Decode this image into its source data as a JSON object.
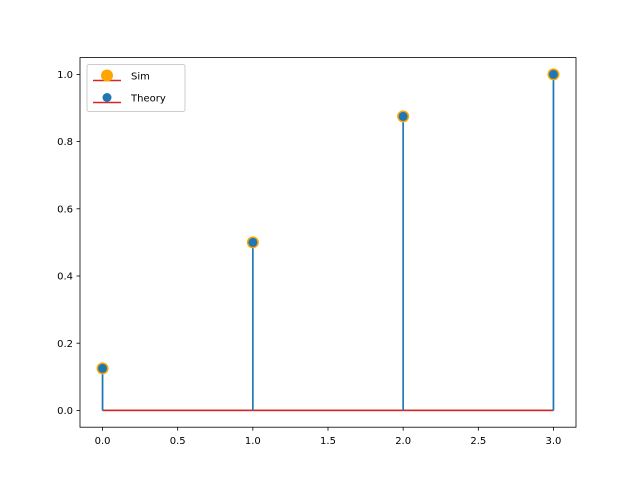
{
  "chart_data": {
    "type": "scatter",
    "subtype": "stem",
    "title": "",
    "xlabel": "",
    "ylabel": "",
    "xlim": [
      -0.15,
      3.15
    ],
    "ylim": [
      -0.05,
      1.05
    ],
    "x_ticks": [
      0.0,
      0.5,
      1.0,
      1.5,
      2.0,
      2.5,
      3.0
    ],
    "x_tick_labels": [
      "0.0",
      "0.5",
      "1.0",
      "1.5",
      "2.0",
      "2.5",
      "3.0"
    ],
    "y_ticks": [
      0.0,
      0.2,
      0.4,
      0.6,
      0.8,
      1.0
    ],
    "y_tick_labels": [
      "0.0",
      "0.2",
      "0.4",
      "0.6",
      "0.8",
      "1.0"
    ],
    "grid": false,
    "legend_position": "top-left",
    "baseline": 0,
    "series": [
      {
        "name": "Sim",
        "x": [
          0,
          1,
          2,
          3
        ],
        "y": [
          0.125,
          0.5,
          0.875,
          1.0
        ],
        "marker_color": "#FFA500",
        "stem_color": "#1f77b4",
        "baseline_color": "#d62728"
      },
      {
        "name": "Theory",
        "x": [
          0,
          1,
          2,
          3
        ],
        "y": [
          0.125,
          0.5,
          0.875,
          1.0
        ],
        "marker_color": "#1f77b4",
        "stem_color": "#1f77b4",
        "baseline_color": "#d62728"
      }
    ]
  }
}
